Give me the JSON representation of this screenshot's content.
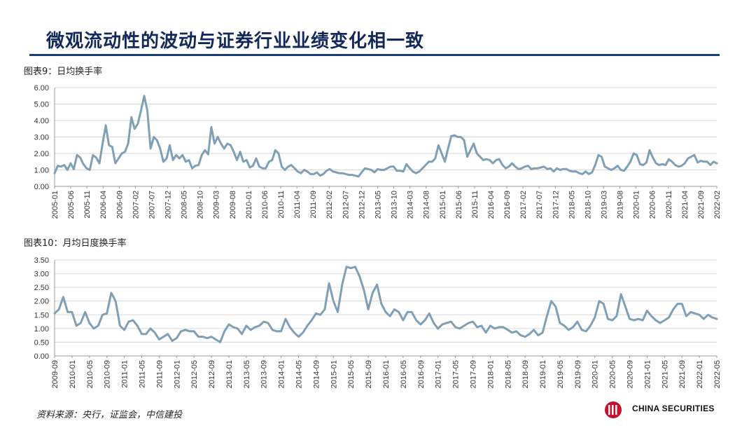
{
  "page": {
    "title": "微观流动性的波动与证券行业业绩变化相一致",
    "source": "资料来源：央行，证监会，中信建投",
    "logo_text": "CHINA SECURITIES"
  },
  "colors": {
    "line": "#7f9fb6",
    "grid": "#d6d6d6",
    "title": "#12285a",
    "rule": "#1a3e74",
    "logo_red": "#c8102e"
  },
  "chart_data": [
    {
      "type": "line",
      "caption": "图表9：日均换手率",
      "title": "",
      "ylim": [
        0,
        6
      ],
      "yticks": [
        "0.00",
        "1.00",
        "2.00",
        "3.00",
        "4.00",
        "5.00",
        "6.00"
      ],
      "xticks": [
        "2005-01",
        "2005-06",
        "2005-11",
        "2006-04",
        "2006-09",
        "2007-02",
        "2007-07",
        "2007-12",
        "2008-05",
        "2008-10",
        "2009-03",
        "2009-08",
        "2010-01",
        "2010-06",
        "2010-11",
        "2011-04",
        "2011-09",
        "2012-02",
        "2012-07",
        "2012-12",
        "2013-05",
        "2013-10",
        "2014-03",
        "2014-08",
        "2015-01",
        "2015-06",
        "2015-11",
        "2016-04",
        "2016-09",
        "2017-02",
        "2017-07",
        "2017-12",
        "2018-05",
        "2018-10",
        "2019-03",
        "2019-08",
        "2020-01",
        "2020-06",
        "2020-11",
        "2021-04",
        "2021-09",
        "2022-02"
      ],
      "grid": true,
      "series": [
        {
          "name": "",
          "values": [
            0.8,
            1.25,
            1.2,
            1.3,
            1.0,
            1.4,
            1.05,
            1.9,
            1.75,
            1.35,
            1.1,
            1.0,
            1.9,
            1.75,
            1.4,
            2.6,
            3.7,
            2.5,
            2.4,
            1.4,
            1.7,
            2.0,
            2.1,
            2.6,
            4.2,
            3.5,
            3.8,
            4.6,
            5.5,
            4.6,
            2.3,
            3.0,
            2.8,
            2.3,
            1.5,
            1.7,
            2.5,
            1.6,
            1.9,
            1.7,
            1.9,
            1.5,
            1.6,
            1.1,
            1.25,
            1.3,
            1.9,
            2.2,
            1.95,
            3.6,
            2.6,
            3.0,
            2.6,
            2.3,
            2.6,
            2.5,
            2.1,
            1.6,
            2.1,
            1.5,
            1.6,
            1.15,
            1.25,
            1.7,
            1.2,
            1.1,
            1.1,
            1.5,
            1.6,
            2.2,
            2.0,
            1.2,
            1.0,
            1.2,
            1.3,
            1.1,
            0.9,
            0.8,
            1.0,
            0.9,
            0.75,
            0.75,
            0.85,
            0.65,
            0.75,
            0.95,
            1.05,
            0.9,
            0.85,
            0.8,
            0.8,
            0.75,
            0.7,
            0.7,
            0.65,
            0.6,
            0.85,
            1.1,
            1.05,
            1.0,
            0.85,
            1.05,
            1.0,
            1.0,
            1.1,
            1.2,
            1.2,
            0.95,
            0.95,
            0.9,
            1.35,
            1.1,
            0.9,
            0.8,
            0.9,
            1.1,
            1.3,
            1.5,
            1.5,
            1.7,
            2.5,
            2.0,
            1.5,
            2.3,
            3.05,
            3.1,
            3.0,
            3.0,
            2.8,
            1.8,
            2.2,
            2.6,
            2.0,
            1.8,
            1.6,
            1.65,
            1.6,
            1.4,
            1.6,
            1.65,
            1.3,
            1.1,
            1.2,
            1.4,
            1.2,
            1.05,
            1.1,
            1.2,
            1.25,
            1.05,
            1.1,
            1.1,
            1.15,
            1.2,
            1.05,
            1.1,
            0.9,
            1.1,
            1.0,
            1.05,
            1.05,
            0.95,
            0.9,
            0.9,
            0.8,
            0.75,
            0.9,
            0.75,
            0.85,
            1.3,
            1.9,
            1.8,
            1.2,
            1.1,
            1.0,
            1.1,
            1.25,
            1.0,
            0.95,
            1.2,
            1.5,
            2.0,
            1.9,
            1.35,
            1.3,
            1.45,
            2.2,
            1.75,
            1.4,
            1.3,
            1.35,
            1.3,
            1.65,
            1.5,
            1.3,
            1.2,
            1.25,
            1.4,
            1.7,
            1.8,
            1.9,
            1.45,
            1.55,
            1.5,
            1.5,
            1.3,
            1.5,
            1.4
          ]
        }
      ]
    },
    {
      "type": "line",
      "caption": "图表10：月均日度换手率",
      "title": "",
      "ylim": [
        0,
        3.5
      ],
      "yticks": [
        "0.00",
        "0.50",
        "1.00",
        "1.50",
        "2.00",
        "2.50",
        "3.00",
        "3.50"
      ],
      "xticks": [
        "2009-09",
        "2010-01",
        "2010-05",
        "2010-09",
        "2011-01",
        "2011-05",
        "2011-09",
        "2012-01",
        "2012-05",
        "2012-09",
        "2013-01",
        "2013-05",
        "2013-09",
        "2014-01",
        "2014-05",
        "2014-09",
        "2015-01",
        "2015-05",
        "2015-09",
        "2016-01",
        "2016-05",
        "2016-09",
        "2017-01",
        "2017-05",
        "2017-09",
        "2018-01",
        "2018-05",
        "2018-09",
        "2019-01",
        "2019-05",
        "2019-09",
        "2020-01",
        "2020-05",
        "2020-09",
        "2021-01",
        "2021-05",
        "2021-09",
        "2022-01",
        "2022-05"
      ],
      "grid": true,
      "series": [
        {
          "name": "",
          "values": [
            1.55,
            1.7,
            2.15,
            1.6,
            1.6,
            1.1,
            1.2,
            1.6,
            1.2,
            1.0,
            1.1,
            1.5,
            1.55,
            2.3,
            2.0,
            1.1,
            0.95,
            1.25,
            1.3,
            1.1,
            0.8,
            0.8,
            1.0,
            0.85,
            0.6,
            0.7,
            0.8,
            0.55,
            0.65,
            0.9,
            0.95,
            0.9,
            0.9,
            0.7,
            0.7,
            0.65,
            0.7,
            0.6,
            0.5,
            0.9,
            1.15,
            1.05,
            1.0,
            0.8,
            1.1,
            0.95,
            1.05,
            1.1,
            1.25,
            1.2,
            0.95,
            0.9,
            0.9,
            1.35,
            1.05,
            0.85,
            0.7,
            0.85,
            1.1,
            1.3,
            1.55,
            1.5,
            1.7,
            2.65,
            2.0,
            1.6,
            2.6,
            3.25,
            3.2,
            3.25,
            2.9,
            2.4,
            1.7,
            2.3,
            2.6,
            1.9,
            1.6,
            1.45,
            1.7,
            1.6,
            1.3,
            1.6,
            1.6,
            1.3,
            1.15,
            1.3,
            1.55,
            1.2,
            1.0,
            1.15,
            1.2,
            1.25,
            1.05,
            1.0,
            1.1,
            1.2,
            1.25,
            1.05,
            1.1,
            0.85,
            1.1,
            1.0,
            1.05,
            1.05,
            0.95,
            0.85,
            0.9,
            0.75,
            0.7,
            0.8,
            0.95,
            0.75,
            0.85,
            1.45,
            2.0,
            1.8,
            1.2,
            1.1,
            0.95,
            1.05,
            1.25,
            0.95,
            0.9,
            1.1,
            1.4,
            2.0,
            1.9,
            1.35,
            1.3,
            1.45,
            2.25,
            1.8,
            1.35,
            1.3,
            1.35,
            1.3,
            1.65,
            1.45,
            1.3,
            1.2,
            1.3,
            1.4,
            1.7,
            1.9,
            1.9,
            1.45,
            1.6,
            1.55,
            1.5,
            1.35,
            1.5,
            1.4,
            1.35
          ]
        }
      ]
    }
  ]
}
